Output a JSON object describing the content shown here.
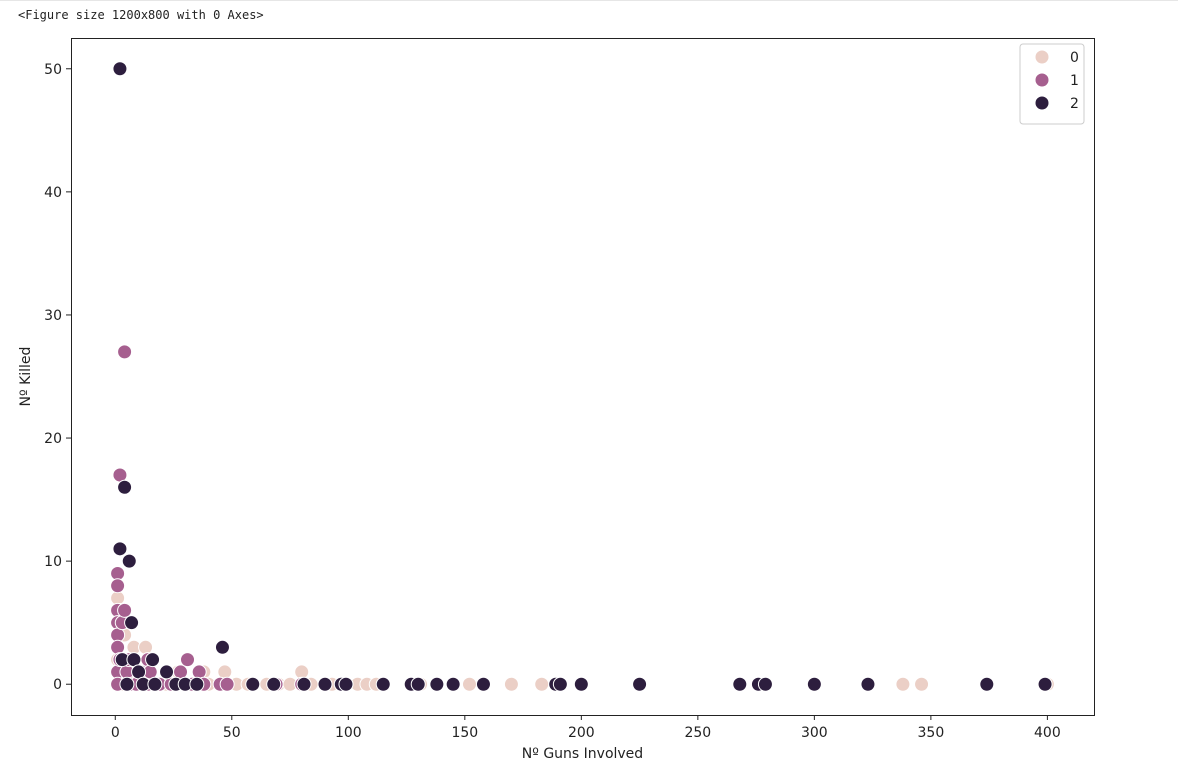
{
  "figure_text": "<Figure size 1200x800 with 0 Axes>",
  "chart_data": {
    "type": "scatter",
    "title": "",
    "xlabel": "Nº Guns Involved",
    "ylabel": "Nº Killed",
    "xlim": [
      -19,
      420
    ],
    "ylim": [
      -2.5,
      52.5
    ],
    "xticks": [
      0,
      50,
      100,
      150,
      200,
      250,
      300,
      350,
      400
    ],
    "yticks": [
      0,
      10,
      20,
      30,
      40,
      50
    ],
    "grid": false,
    "legend_position": "top-right",
    "hue_order": [
      "0",
      "1",
      "2"
    ],
    "colors": {
      "0": "#ebcfc6",
      "1": "#a65f8f",
      "2": "#2d1e3e"
    },
    "series": [
      {
        "name": "0",
        "points": [
          [
            1,
            7
          ],
          [
            1,
            5
          ],
          [
            1,
            3
          ],
          [
            1,
            2
          ],
          [
            2,
            1
          ],
          [
            3,
            0
          ],
          [
            3,
            6
          ],
          [
            4,
            4
          ],
          [
            5,
            2
          ],
          [
            6,
            1
          ],
          [
            7,
            0
          ],
          [
            8,
            3
          ],
          [
            9,
            1
          ],
          [
            10,
            0
          ],
          [
            12,
            0
          ],
          [
            13,
            3
          ],
          [
            15,
            1
          ],
          [
            18,
            0
          ],
          [
            22,
            0
          ],
          [
            27,
            1
          ],
          [
            33,
            0
          ],
          [
            38,
            1
          ],
          [
            40,
            0
          ],
          [
            47,
            1
          ],
          [
            52,
            0
          ],
          [
            57,
            0
          ],
          [
            65,
            0
          ],
          [
            70,
            0
          ],
          [
            75,
            0
          ],
          [
            80,
            1
          ],
          [
            84,
            0
          ],
          [
            93,
            0
          ],
          [
            104,
            0
          ],
          [
            108,
            0
          ],
          [
            112,
            0
          ],
          [
            131,
            0
          ],
          [
            152,
            0
          ],
          [
            170,
            0
          ],
          [
            183,
            0
          ],
          [
            338,
            0
          ],
          [
            346,
            0
          ],
          [
            400,
            0
          ]
        ]
      },
      {
        "name": "1",
        "points": [
          [
            1,
            9
          ],
          [
            1,
            8
          ],
          [
            1,
            6
          ],
          [
            1,
            5
          ],
          [
            1,
            4
          ],
          [
            1,
            3
          ],
          [
            1,
            1
          ],
          [
            1,
            0
          ],
          [
            2,
            17
          ],
          [
            2,
            2
          ],
          [
            3,
            5
          ],
          [
            4,
            27
          ],
          [
            4,
            6
          ],
          [
            5,
            1
          ],
          [
            6,
            2
          ],
          [
            7,
            0
          ],
          [
            9,
            0
          ],
          [
            11,
            1
          ],
          [
            14,
            0
          ],
          [
            14,
            2
          ],
          [
            15,
            1
          ],
          [
            19,
            0
          ],
          [
            24,
            0
          ],
          [
            28,
            1
          ],
          [
            31,
            2
          ],
          [
            33,
            0
          ],
          [
            36,
            1
          ],
          [
            38,
            0
          ],
          [
            45,
            0
          ],
          [
            48,
            0
          ],
          [
            69,
            0
          ],
          [
            80,
            0
          ],
          [
            99,
            0
          ]
        ]
      },
      {
        "name": "2",
        "points": [
          [
            2,
            50
          ],
          [
            2,
            11
          ],
          [
            4,
            16
          ],
          [
            6,
            10
          ],
          [
            3,
            2
          ],
          [
            5,
            0
          ],
          [
            7,
            5
          ],
          [
            8,
            2
          ],
          [
            10,
            1
          ],
          [
            12,
            0
          ],
          [
            16,
            2
          ],
          [
            17,
            0
          ],
          [
            22,
            1
          ],
          [
            26,
            0
          ],
          [
            30,
            0
          ],
          [
            35,
            0
          ],
          [
            46,
            3
          ],
          [
            59,
            0
          ],
          [
            68,
            0
          ],
          [
            81,
            0
          ],
          [
            90,
            0
          ],
          [
            97,
            0
          ],
          [
            99,
            0
          ],
          [
            115,
            0
          ],
          [
            127,
            0
          ],
          [
            130,
            0
          ],
          [
            138,
            0
          ],
          [
            145,
            0
          ],
          [
            158,
            0
          ],
          [
            189,
            0
          ],
          [
            191,
            0
          ],
          [
            200,
            0
          ],
          [
            225,
            0
          ],
          [
            268,
            0
          ],
          [
            276,
            0
          ],
          [
            279,
            0
          ],
          [
            300,
            0
          ],
          [
            323,
            0
          ],
          [
            374,
            0
          ],
          [
            399,
            0
          ]
        ]
      }
    ]
  }
}
